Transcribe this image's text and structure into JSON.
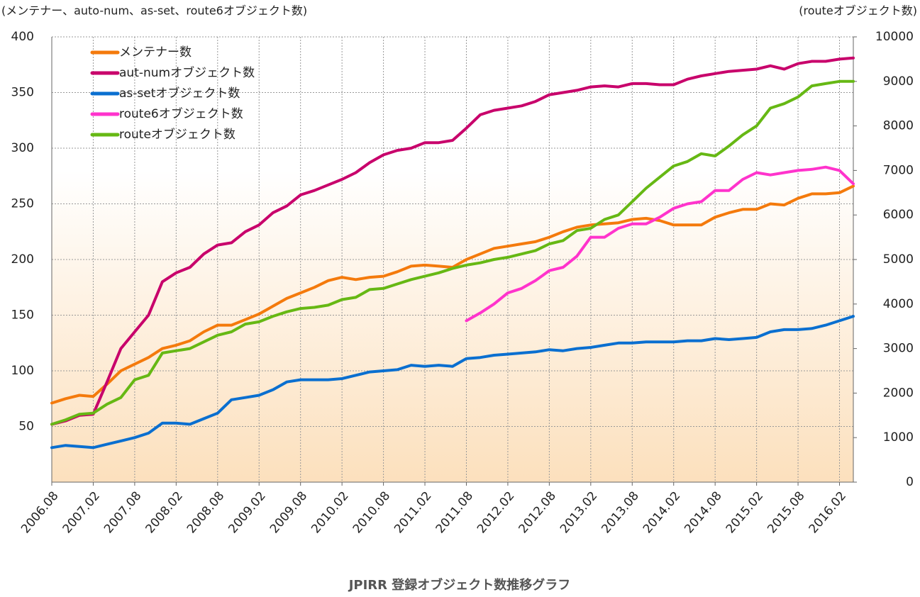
{
  "chart_data": {
    "type": "line",
    "title": "JPIRR 登録オブジェクト数推移グラフ",
    "y_label": "(メンテナー、auto-num、as-set、route6オブジェクト数)",
    "y2_label": "(routeオブジェクト数)",
    "categories": [
      "2006.08",
      null,
      null,
      "2007.02",
      null,
      null,
      "2007.08",
      null,
      null,
      "2008.02",
      null,
      null,
      "2008.08",
      null,
      null,
      "2009.02",
      null,
      null,
      "2009.08",
      null,
      null,
      "2010.02",
      null,
      null,
      "2010.08",
      null,
      null,
      "2011.02",
      null,
      null,
      "2011.08",
      null,
      null,
      "2012.02",
      null,
      null,
      "2012.08",
      null,
      null,
      "2013.02",
      null,
      null,
      "2013.08",
      null,
      null,
      "2014.02",
      null,
      null,
      "2014.08",
      null,
      null,
      "2015.02",
      null,
      null,
      "2015.08",
      null,
      null,
      "2016.02",
      null
    ],
    "ylim": [
      0,
      400
    ],
    "yticks": [
      50,
      100,
      150,
      200,
      250,
      300,
      350,
      400
    ],
    "y2lim": [
      0,
      10000
    ],
    "y2ticks": [
      0,
      1000,
      2000,
      3000,
      4000,
      5000,
      6000,
      7000,
      8000,
      9000,
      10000
    ],
    "grid": true,
    "legend": "upper-left",
    "series": [
      {
        "name": "メンテナー数",
        "color": "#f47a0c",
        "values": [
          71,
          75,
          78,
          77,
          88,
          100,
          106,
          112,
          120,
          123,
          127,
          135,
          141,
          141,
          146,
          151,
          158,
          165,
          170,
          175,
          181,
          184,
          182,
          184,
          185,
          189,
          194,
          195,
          194,
          193,
          200,
          205,
          210,
          212,
          214,
          216,
          220,
          225,
          229,
          231,
          232,
          233,
          236,
          237,
          235,
          231,
          231,
          231,
          238,
          242,
          245,
          245,
          250,
          249,
          255,
          259,
          259,
          260,
          266
        ]
      },
      {
        "name": "aut-numオブジェクト数",
        "color": "#c8006b",
        "values": [
          52,
          55,
          60,
          61,
          90,
          120,
          135,
          150,
          180,
          188,
          193,
          205,
          213,
          215,
          225,
          231,
          242,
          248,
          258,
          262,
          267,
          272,
          278,
          287,
          294,
          298,
          300,
          305,
          305,
          307,
          318,
          330,
          334,
          336,
          338,
          342,
          348,
          350,
          352,
          355,
          356,
          355,
          358,
          358,
          357,
          357,
          362,
          365,
          367,
          369,
          370,
          371,
          374,
          371,
          376,
          378,
          378,
          380,
          381
        ]
      },
      {
        "name": "as-setオブジェクト数",
        "color": "#0a6fd0",
        "values": [
          31,
          33,
          32,
          31,
          34,
          37,
          40,
          44,
          53,
          53,
          52,
          57,
          62,
          74,
          76,
          78,
          83,
          90,
          92,
          92,
          92,
          93,
          96,
          99,
          100,
          101,
          105,
          104,
          105,
          104,
          111,
          112,
          114,
          115,
          116,
          117,
          119,
          118,
          120,
          121,
          123,
          125,
          125,
          126,
          126,
          126,
          127,
          127,
          129,
          128,
          129,
          130,
          135,
          137,
          137,
          138,
          141,
          145,
          149
        ]
      },
      {
        "name": "route6オブジェクト数",
        "color": "#ff33cc",
        "values": [
          null,
          null,
          null,
          null,
          null,
          null,
          null,
          null,
          null,
          null,
          null,
          null,
          null,
          null,
          null,
          null,
          null,
          null,
          null,
          null,
          null,
          null,
          null,
          null,
          null,
          null,
          null,
          null,
          null,
          null,
          145,
          152,
          160,
          170,
          174,
          181,
          190,
          193,
          203,
          220,
          220,
          228,
          232,
          232,
          238,
          246,
          250,
          252,
          262,
          262,
          272,
          278,
          276,
          278,
          280,
          281,
          283,
          280,
          268
        ]
      },
      {
        "name": "routeオブジェクト数",
        "color": "#66b814",
        "axis": "y2",
        "values": [
          1300,
          1400,
          1525,
          1550,
          1750,
          1900,
          2300,
          2400,
          2900,
          2950,
          3000,
          3150,
          3300,
          3375,
          3550,
          3600,
          3725,
          3825,
          3900,
          3925,
          3975,
          4100,
          4150,
          4325,
          4350,
          4450,
          4550,
          4625,
          4700,
          4800,
          4875,
          4925,
          5000,
          5050,
          5125,
          5200,
          5350,
          5425,
          5650,
          5700,
          5900,
          6000,
          6300,
          6600,
          6850,
          7100,
          7200,
          7375,
          7325,
          7550,
          7800,
          8000,
          8400,
          8500,
          8650,
          8900,
          8950,
          9000,
          9000
        ]
      }
    ]
  }
}
